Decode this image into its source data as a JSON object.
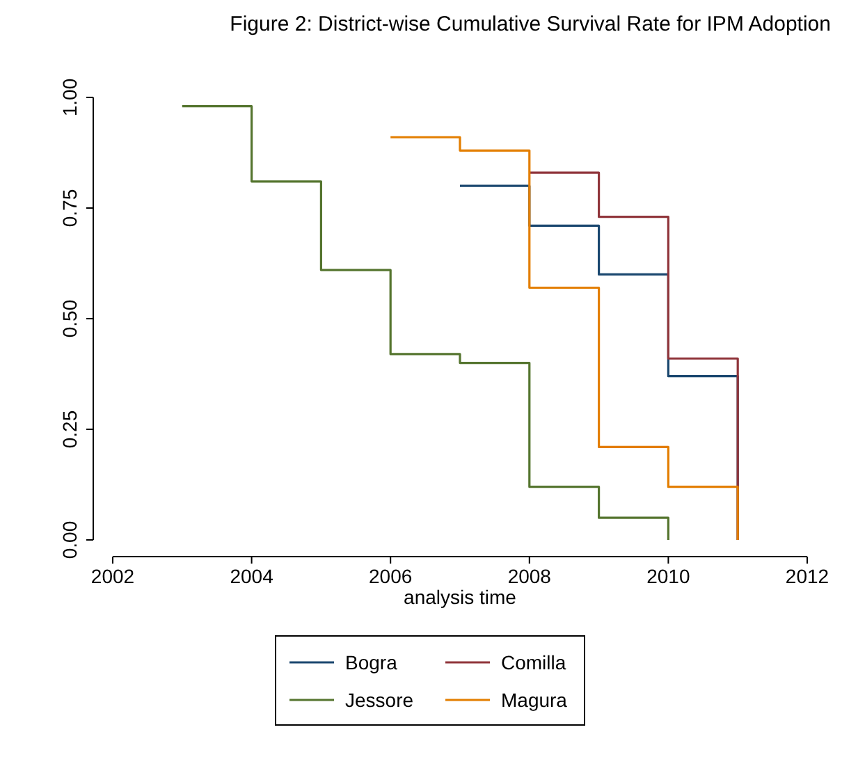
{
  "chart_data": {
    "type": "step",
    "title": "Figure 2: District-wise Cumulative Survival Rate for IPM Adoption",
    "xlabel": "analysis time",
    "xlim": [
      2002,
      2012
    ],
    "xticks": [
      2002,
      2004,
      2006,
      2008,
      2010,
      2012
    ],
    "ylim": [
      0,
      1
    ],
    "yticks": [
      {
        "value": 0,
        "label": "0.00"
      },
      {
        "value": 0.25,
        "label": "0.25"
      },
      {
        "value": 0.5,
        "label": "0.50"
      },
      {
        "value": 0.75,
        "label": "0.75"
      },
      {
        "value": 1,
        "label": "1.00"
      }
    ],
    "grid": false,
    "legend": "bottom",
    "series": [
      {
        "name": "Bogra",
        "color": "#1a476f",
        "x": [
          2007,
          2008,
          2009,
          2010,
          2011
        ],
        "values": [
          0.8,
          0.71,
          0.6,
          0.37,
          0
        ]
      },
      {
        "name": "Comilla",
        "color": "#90353b",
        "x": [
          2008,
          2009,
          2010,
          2011
        ],
        "values": [
          0.83,
          0.73,
          0.41,
          0
        ]
      },
      {
        "name": "Jessore",
        "color": "#55752f",
        "x": [
          2003,
          2004,
          2005,
          2006,
          2007,
          2008,
          2009,
          2010
        ],
        "values": [
          0.98,
          0.81,
          0.61,
          0.42,
          0.4,
          0.12,
          0.05,
          0
        ]
      },
      {
        "name": "Magura",
        "color": "#e37e00",
        "x": [
          2006,
          2007,
          2008,
          2009,
          2010,
          2011
        ],
        "values": [
          0.91,
          0.88,
          0.57,
          0.21,
          0.12,
          0
        ]
      }
    ]
  }
}
